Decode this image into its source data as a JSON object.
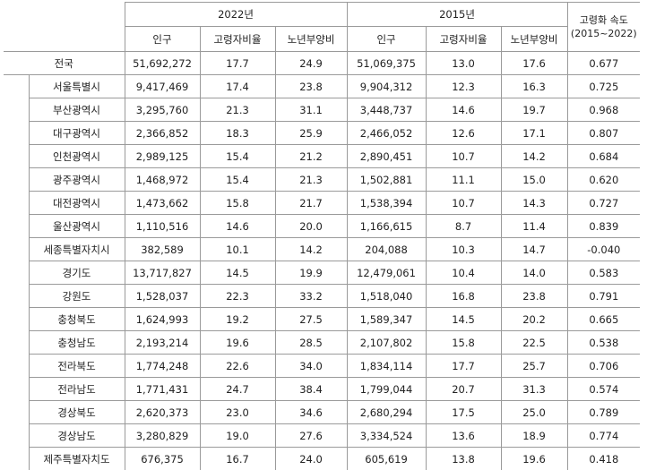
{
  "header": {
    "group_2022": "2022년",
    "group_2015": "2015년",
    "speed_line1": "고령화 속도",
    "speed_line2": "(2015~2022)",
    "col_pop": "인구",
    "col_elder_ratio": "고령자비율",
    "col_dependency": "노년부양비"
  },
  "national": {
    "region": "전국",
    "pop2022": "51,692,272",
    "ratio2022": "17.7",
    "dep2022": "24.9",
    "pop2015": "51,069,375",
    "ratio2015": "13.0",
    "dep2015": "17.6",
    "speed": "0.677"
  },
  "rows": [
    {
      "region": "서울특별시",
      "pop2022": "9,417,469",
      "ratio2022": "17.4",
      "dep2022": "23.8",
      "pop2015": "9,904,312",
      "ratio2015": "12.3",
      "dep2015": "16.3",
      "speed": "0.725"
    },
    {
      "region": "부산광역시",
      "pop2022": "3,295,760",
      "ratio2022": "21.3",
      "dep2022": "31.1",
      "pop2015": "3,448,737",
      "ratio2015": "14.6",
      "dep2015": "19.7",
      "speed": "0.968"
    },
    {
      "region": "대구광역시",
      "pop2022": "2,366,852",
      "ratio2022": "18.3",
      "dep2022": "25.9",
      "pop2015": "2,466,052",
      "ratio2015": "12.6",
      "dep2015": "17.1",
      "speed": "0.807"
    },
    {
      "region": "인천광역시",
      "pop2022": "2,989,125",
      "ratio2022": "15.4",
      "dep2022": "21.2",
      "pop2015": "2,890,451",
      "ratio2015": "10.7",
      "dep2015": "14.2",
      "speed": "0.684"
    },
    {
      "region": "광주광역시",
      "pop2022": "1,468,972",
      "ratio2022": "15.4",
      "dep2022": "21.3",
      "pop2015": "1,502,881",
      "ratio2015": "11.1",
      "dep2015": "15.0",
      "speed": "0.620"
    },
    {
      "region": "대전광역시",
      "pop2022": "1,473,662",
      "ratio2022": "15.8",
      "dep2022": "21.7",
      "pop2015": "1,538,394",
      "ratio2015": "10.7",
      "dep2015": "14.3",
      "speed": "0.727"
    },
    {
      "region": "울산광역시",
      "pop2022": "1,110,516",
      "ratio2022": "14.6",
      "dep2022": "20.0",
      "pop2015": "1,166,615",
      "ratio2015": "8.7",
      "dep2015": "11.4",
      "speed": "0.839"
    },
    {
      "region": "세종특별자치시",
      "pop2022": "382,589",
      "ratio2022": "10.1",
      "dep2022": "14.2",
      "pop2015": "204,088",
      "ratio2015": "10.3",
      "dep2015": "14.7",
      "speed": "-0.040"
    },
    {
      "region": "경기도",
      "pop2022": "13,717,827",
      "ratio2022": "14.5",
      "dep2022": "19.9",
      "pop2015": "12,479,061",
      "ratio2015": "10.4",
      "dep2015": "14.0",
      "speed": "0.583"
    },
    {
      "region": "강원도",
      "pop2022": "1,528,037",
      "ratio2022": "22.3",
      "dep2022": "33.2",
      "pop2015": "1,518,040",
      "ratio2015": "16.8",
      "dep2015": "23.8",
      "speed": "0.791"
    },
    {
      "region": "충청북도",
      "pop2022": "1,624,993",
      "ratio2022": "19.2",
      "dep2022": "27.5",
      "pop2015": "1,589,347",
      "ratio2015": "14.5",
      "dep2015": "20.2",
      "speed": "0.665"
    },
    {
      "region": "충청남도",
      "pop2022": "2,193,214",
      "ratio2022": "19.6",
      "dep2022": "28.5",
      "pop2015": "2,107,802",
      "ratio2015": "15.8",
      "dep2015": "22.5",
      "speed": "0.538"
    },
    {
      "region": "전라북도",
      "pop2022": "1,774,248",
      "ratio2022": "22.6",
      "dep2022": "34.0",
      "pop2015": "1,834,114",
      "ratio2015": "17.7",
      "dep2015": "25.7",
      "speed": "0.706"
    },
    {
      "region": "전라남도",
      "pop2022": "1,771,431",
      "ratio2022": "24.7",
      "dep2022": "38.4",
      "pop2015": "1,799,044",
      "ratio2015": "20.7",
      "dep2015": "31.3",
      "speed": "0.574"
    },
    {
      "region": "경상북도",
      "pop2022": "2,620,373",
      "ratio2022": "23.0",
      "dep2022": "34.6",
      "pop2015": "2,680,294",
      "ratio2015": "17.5",
      "dep2015": "25.0",
      "speed": "0.789"
    },
    {
      "region": "경상남도",
      "pop2022": "3,280,829",
      "ratio2022": "19.0",
      "dep2022": "27.6",
      "pop2015": "3,334,524",
      "ratio2015": "13.6",
      "dep2015": "18.9",
      "speed": "0.774"
    },
    {
      "region": "제주특별자치도",
      "pop2022": "676,375",
      "ratio2022": "16.7",
      "dep2022": "24.0",
      "pop2015": "605,619",
      "ratio2015": "13.8",
      "dep2015": "19.6",
      "speed": "0.418"
    }
  ]
}
